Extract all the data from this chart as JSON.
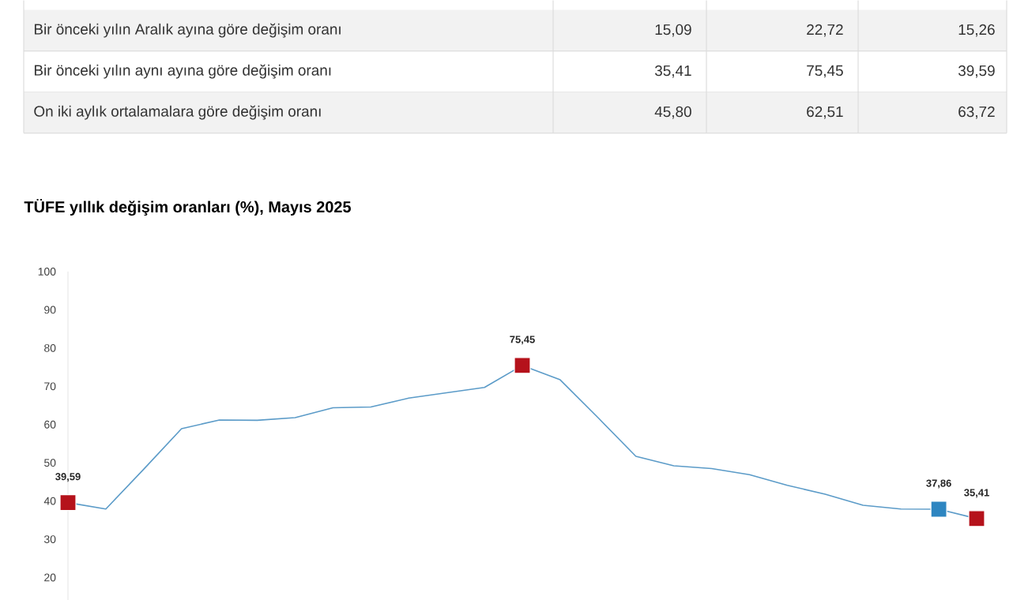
{
  "chart_data": {
    "type": "line",
    "title": "TÜFE yıllık değişim oranları (%), Mayıs 2025",
    "categories": [
      null,
      null,
      null,
      null,
      null,
      null,
      null,
      null,
      null,
      null,
      null,
      null,
      null,
      null,
      null,
      null,
      null,
      null,
      null,
      null,
      null,
      null,
      null,
      null,
      null
    ],
    "series": [
      {
        "color": "#5b9bc8",
        "marker": "none",
        "values": [
          39.59,
          37.9,
          48.3,
          58.9,
          61.2,
          61.1,
          61.8,
          64.4,
          64.6,
          66.9,
          68.3,
          69.7,
          75.45,
          71.7,
          61.8,
          51.7,
          49.2,
          48.5,
          46.9,
          44.1,
          41.8,
          38.9,
          37.9,
          37.86,
          35.41
        ]
      },
      {
        "type": "scatter",
        "marker": "square",
        "colors": [
          "#b5121b",
          null,
          null,
          null,
          null,
          null,
          null,
          null,
          null,
          null,
          null,
          null,
          "#b5121b",
          null,
          null,
          null,
          null,
          null,
          null,
          null,
          null,
          null,
          null,
          "#2e86c1",
          "#b5121b"
        ],
        "values": [
          39.59,
          null,
          null,
          null,
          null,
          null,
          null,
          null,
          null,
          null,
          null,
          null,
          75.45,
          null,
          null,
          null,
          null,
          null,
          null,
          null,
          null,
          null,
          null,
          37.86,
          35.41
        ],
        "value_labels": [
          "39,59",
          null,
          null,
          null,
          null,
          null,
          null,
          null,
          null,
          null,
          null,
          null,
          "75,45",
          null,
          null,
          null,
          null,
          null,
          null,
          null,
          null,
          null,
          null,
          "37,86",
          "35,41"
        ]
      }
    ],
    "ylim": [
      14,
      100
    ],
    "yticks": [
      20,
      30,
      40,
      50,
      60,
      70,
      80,
      90,
      100
    ],
    "annotations": [
      "Bir önceki yılın Aralık ayına göre değişim oranı",
      "15,09",
      "22,72",
      "15,26",
      "Bir önceki yılın aynı ayına göre değişim oranı",
      "35,41",
      "75,45",
      "39,59",
      "On iki aylık ortalamalara göre değişim oranı",
      "45,80",
      "62,51",
      "63,72"
    ]
  }
}
